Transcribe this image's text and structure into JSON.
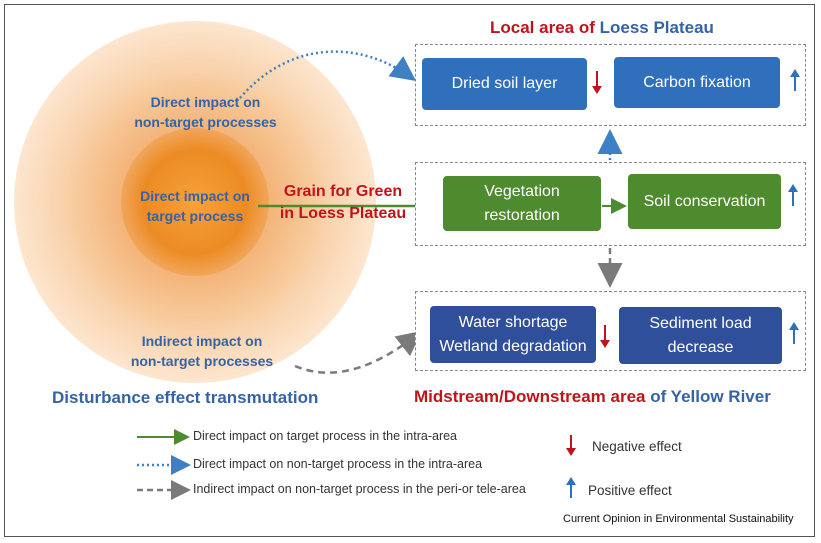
{
  "diagram": {
    "outer_ring_label": [
      "Direct impact on",
      "non-target processes"
    ],
    "core_label": [
      "Direct impact on",
      "target process"
    ],
    "periphery_label": [
      "Indirect impact on",
      "non-target processes"
    ],
    "policy_label": [
      "Grain for Green",
      "in Loess Plateau"
    ],
    "caption": "Disturbance effect transmutation",
    "local_heading": {
      "part1": "Local area of ",
      "part2": "Loess Plateau"
    },
    "downstream_heading": {
      "part1": "Midstream/Downstream area ",
      "part2": "of Yellow River"
    },
    "boxes": {
      "dried_soil": "Dried soil layer",
      "carbon_fixation": "Carbon fixation",
      "vegetation": [
        "Vegetation",
        "restoration"
      ],
      "soil_conservation": "Soil conservation",
      "water_shortage": [
        "Water shortage",
        "Wetland degradation"
      ],
      "sediment": [
        "Sediment load",
        "decrease"
      ]
    },
    "effects": {
      "dried_soil": "negative",
      "carbon_fixation": "positive",
      "soil_conservation": "positive",
      "water_shortage": "negative",
      "sediment": "positive"
    }
  },
  "legend": {
    "solid": "Direct impact on target process in the intra-area",
    "dotted": "Direct impact on non-target process in the intra-area",
    "dashed": "Indirect impact on non-target process in the peri-or tele-area",
    "negative": "Negative effect",
    "positive": "Positive  effect"
  },
  "credit": "Current Opinion in Environmental Sustainability",
  "colors": {
    "red": "#c0141c",
    "blue_text": "#3563a6",
    "box_blue": "#2f6fbb",
    "box_green": "#4e8a2e",
    "box_navy": "#2f4f9a",
    "arrow_green": "#4e8a2e",
    "arrow_dotted": "#3f7fc4",
    "arrow_dashed": "#7a7a7a",
    "positive_arrow": "#2f6fbb",
    "negative_arrow": "#c0141c"
  }
}
